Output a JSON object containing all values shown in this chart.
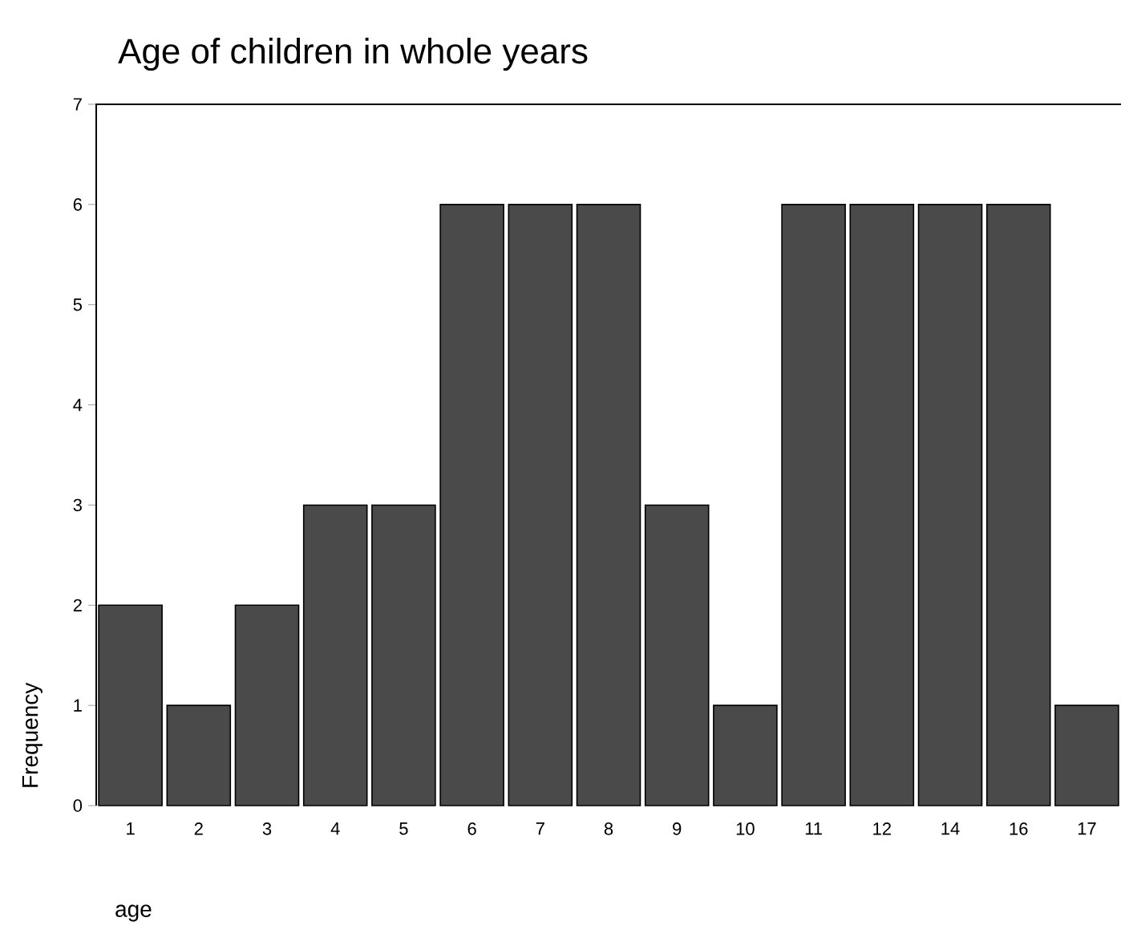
{
  "chart_data": {
    "type": "bar",
    "title": "Age of children in whole years",
    "xlabel": "age",
    "ylabel": "Frequency",
    "categories": [
      "1",
      "2",
      "3",
      "4",
      "5",
      "6",
      "7",
      "8",
      "9",
      "10",
      "11",
      "12",
      "14",
      "16",
      "17"
    ],
    "values": [
      2,
      1,
      2,
      3,
      3,
      6,
      6,
      6,
      3,
      1,
      6,
      6,
      6,
      6,
      1
    ],
    "color": "#4a4a4a",
    "ylim": [
      0,
      7
    ],
    "yticks": [
      0,
      1,
      2,
      3,
      4,
      5,
      6,
      7
    ]
  }
}
